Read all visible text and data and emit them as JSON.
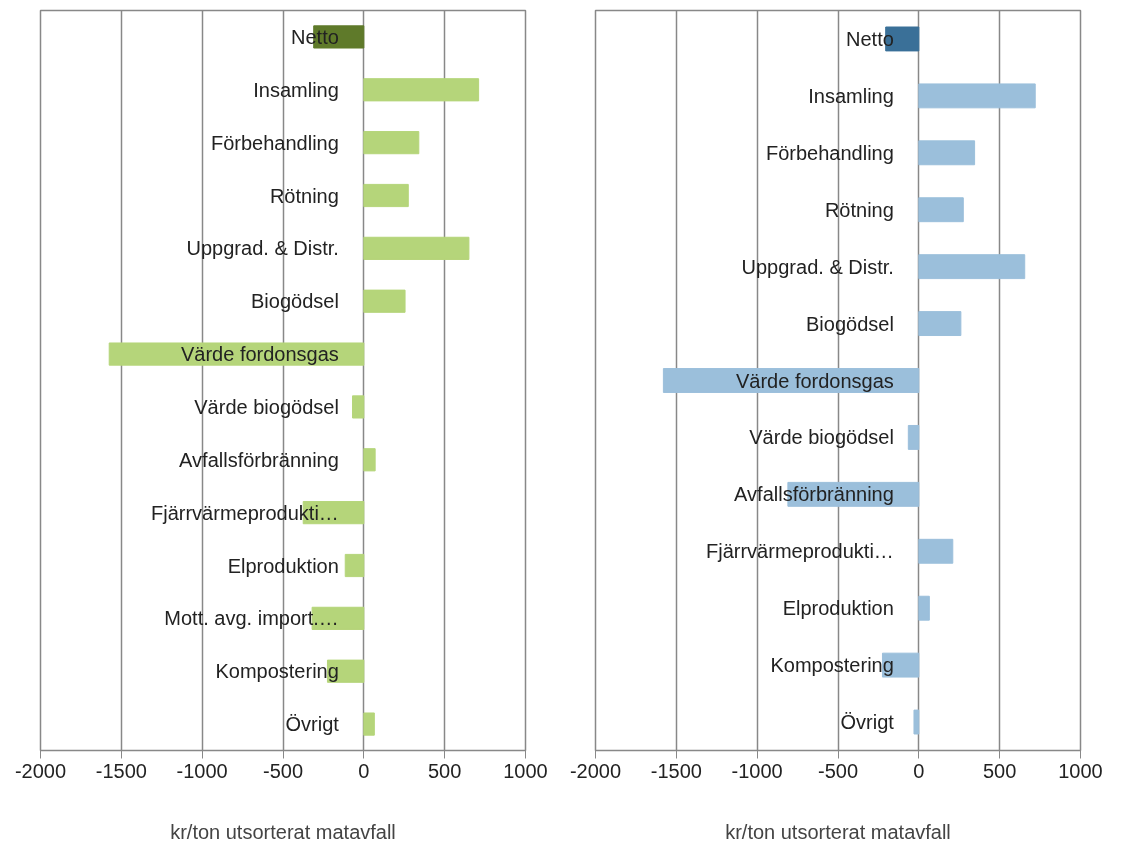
{
  "chart_data": [
    {
      "type": "bar",
      "orientation": "horizontal",
      "categories": [
        "Netto",
        "Insamling",
        "Förbehandling",
        "Rötning",
        "Uppgrad. & Distr.",
        "Biogödsel",
        "Värde fordonsgas",
        "Värde biogödsel",
        "Avfallsförbränning",
        "Fjärrvärmeprodukti…",
        "Elproduktion",
        "Mott. avg. import.…",
        "Kompostering",
        "Övrigt"
      ],
      "values": [
        -310,
        710,
        340,
        275,
        650,
        255,
        -1575,
        -70,
        70,
        -375,
        -115,
        -320,
        -225,
        65
      ],
      "colors": [
        "#5f7a2a",
        "#b5d57a",
        "#b5d57a",
        "#b5d57a",
        "#b5d57a",
        "#b5d57a",
        "#b5d57a",
        "#b5d57a",
        "#b5d57a",
        "#b5d57a",
        "#b5d57a",
        "#b5d57a",
        "#b5d57a",
        "#b5d57a"
      ],
      "xlim": [
        -2000,
        1000
      ],
      "xticks": [
        -2000,
        -1500,
        -1000,
        -500,
        0,
        500,
        1000
      ],
      "xlabel": "kr/ton utsorterat matavfall",
      "grid": "x"
    },
    {
      "type": "bar",
      "orientation": "horizontal",
      "categories": [
        "Netto",
        "Insamling",
        "Förbehandling",
        "Rötning",
        "Uppgrad. & Distr.",
        "Biogödsel",
        "Värde fordonsgas",
        "Värde biogödsel",
        "Avfallsförbränning",
        "Fjärrvärmeprodukti…",
        "Elproduktion",
        "Kompostering",
        "Övrigt"
      ],
      "values": [
        -205,
        720,
        345,
        275,
        655,
        260,
        -1580,
        -65,
        -810,
        210,
        65,
        -225,
        -30
      ],
      "colors": [
        "#3a7098",
        "#9bbfdb",
        "#9bbfdb",
        "#9bbfdb",
        "#9bbfdb",
        "#9bbfdb",
        "#9bbfdb",
        "#9bbfdb",
        "#9bbfdb",
        "#9bbfdb",
        "#9bbfdb",
        "#9bbfdb",
        "#9bbfdb"
      ],
      "xlim": [
        -2000,
        1000
      ],
      "xticks": [
        -2000,
        -1500,
        -1000,
        -500,
        0,
        500,
        1000
      ],
      "xlabel": "kr/ton utsorterat matavfall",
      "grid": "x"
    }
  ]
}
